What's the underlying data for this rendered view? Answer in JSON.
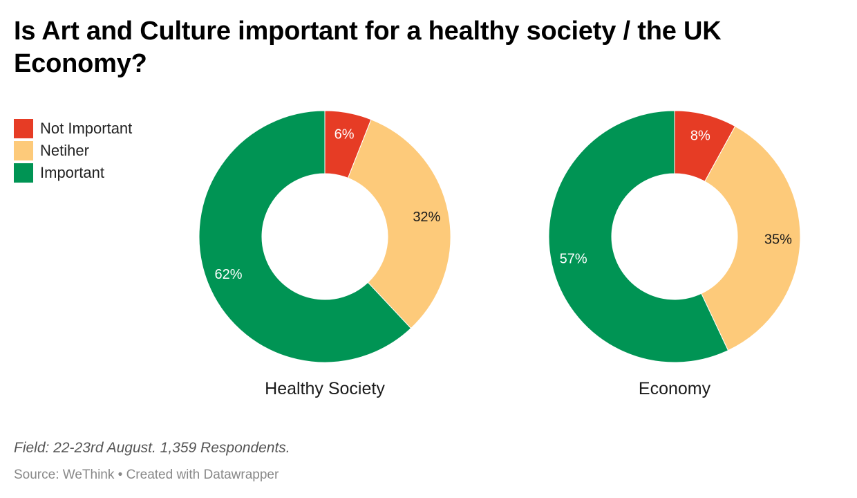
{
  "title": "Is Art and Culture important for a healthy society / the UK Economy?",
  "legend": [
    {
      "label": "Not Important",
      "color": "#e63c25"
    },
    {
      "label": "Netiher",
      "color": "#fdca7a"
    },
    {
      "label": "Important",
      "color": "#009454"
    }
  ],
  "chart_data": [
    {
      "type": "pie",
      "title": "Healthy Society",
      "slices": [
        {
          "label": "Not Important",
          "value": 6,
          "display": "6%",
          "color": "#e63c25",
          "text_color": "#ffffff"
        },
        {
          "label": "Netiher",
          "value": 32,
          "display": "32%",
          "color": "#fdca7a",
          "text_color": "#1a1a1a"
        },
        {
          "label": "Important",
          "value": 62,
          "display": "62%",
          "color": "#009454",
          "text_color": "#ffffff"
        }
      ]
    },
    {
      "type": "pie",
      "title": "Economy",
      "slices": [
        {
          "label": "Not Important",
          "value": 8,
          "display": "8%",
          "color": "#e63c25",
          "text_color": "#ffffff"
        },
        {
          "label": "Netiher",
          "value": 35,
          "display": "35%",
          "color": "#fdca7a",
          "text_color": "#1a1a1a"
        },
        {
          "label": "Important",
          "value": 57,
          "display": "57%",
          "color": "#009454",
          "text_color": "#ffffff"
        }
      ]
    }
  ],
  "footer": {
    "note": "Field: 22-23rd August. 1,359 Respondents.",
    "source": "Source: WeThink • Created with Datawrapper"
  }
}
